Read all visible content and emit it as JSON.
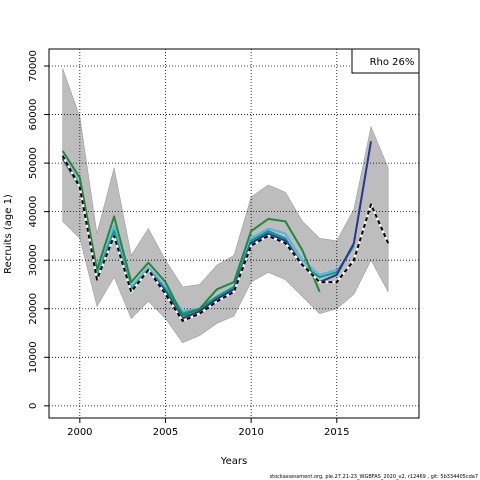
{
  "chart_data": {
    "type": "line",
    "title": "",
    "xlabel": "Years",
    "ylabel": "Recruits (age 1)",
    "xlim": [
      1998.2,
      2019.8
    ],
    "ylim": [
      -2500,
      73500
    ],
    "x_ticks": [
      2000,
      2005,
      2010,
      2015
    ],
    "x_tick_labels": [
      "2000",
      "2005",
      "2010",
      "2015"
    ],
    "y_ticks": [
      0,
      10000,
      20000,
      30000,
      40000,
      50000,
      60000,
      70000
    ],
    "y_tick_labels": [
      "0",
      "10000",
      "20000",
      "30000",
      "40000",
      "50000",
      "60000",
      "70000"
    ],
    "grid": "dotted at tick positions",
    "annotation": "Rho 26%",
    "annotation_position": "top-right",
    "footer": "stockassessment.org, ple.27.21-23_WGBFAS_2020_v2, r12469 , git: 5b334405cda7",
    "band_color": "#bdbdbd",
    "confidence_band": {
      "x": [
        1999,
        2000,
        2001,
        2002,
        2003,
        2004,
        2005,
        2006,
        2007,
        2008,
        2009,
        2010,
        2011,
        2012,
        2013,
        2014,
        2015,
        2016,
        2017,
        2018
      ],
      "upper": [
        69500,
        59500,
        35500,
        49000,
        31000,
        36500,
        30000,
        24500,
        25000,
        29000,
        31000,
        43000,
        45500,
        44000,
        38000,
        34500,
        34000,
        40500,
        57500,
        49000
      ],
      "lower": [
        38000,
        34500,
        20500,
        26500,
        18000,
        21500,
        18000,
        13000,
        14500,
        17000,
        18500,
        25500,
        27500,
        26000,
        22500,
        19000,
        20000,
        23000,
        30000,
        23500
      ]
    },
    "series": [
      {
        "color": "#56b4e9",
        "x": [
          1999,
          2000,
          2001,
          2002,
          2003,
          2004,
          2005,
          2006,
          2007,
          2008,
          2009,
          2010,
          2011,
          2012,
          2013,
          2014,
          2015
        ],
        "values": [
          51000,
          45500,
          27000,
          37000,
          24500,
          28500,
          24500,
          19500,
          20000,
          22500,
          24500,
          34500,
          36500,
          35500,
          30000,
          27000,
          28000
        ]
      },
      {
        "color": "#00a087",
        "x": [
          1999,
          2000,
          2001,
          2002,
          2003,
          2004,
          2005,
          2006,
          2007,
          2008,
          2009,
          2010,
          2011,
          2012,
          2013,
          2014,
          2015,
          2016
        ],
        "values": [
          51500,
          45500,
          26500,
          36000,
          24000,
          28000,
          24000,
          19000,
          20000,
          22500,
          24500,
          34000,
          36000,
          34500,
          29000,
          26500,
          27500,
          33000
        ]
      },
      {
        "color": "#283593",
        "x": [
          1999,
          2000,
          2001,
          2002,
          2003,
          2004,
          2005,
          2006,
          2007,
          2008,
          2009,
          2010,
          2011,
          2012,
          2013,
          2014,
          2015,
          2016,
          2017
        ],
        "values": [
          51000,
          45000,
          26000,
          35000,
          23500,
          28000,
          23500,
          18000,
          19500,
          22000,
          24000,
          33500,
          35500,
          34000,
          29000,
          25500,
          27000,
          33500,
          54500
        ]
      },
      {
        "color": "#1b8a3a",
        "x": [
          1999,
          2000,
          2001,
          2002,
          2003,
          2004,
          2005,
          2006,
          2007,
          2008,
          2009,
          2010,
          2011,
          2012,
          2013,
          2014
        ],
        "values": [
          52500,
          47000,
          28000,
          39000,
          25500,
          29500,
          25500,
          18500,
          20000,
          24000,
          25500,
          36000,
          38500,
          38000,
          32000,
          23500
        ]
      },
      {
        "color": "#000000",
        "dashed": true,
        "x": [
          1999,
          2000,
          2001,
          2002,
          2003,
          2004,
          2005,
          2006,
          2007,
          2008,
          2009,
          2010,
          2011,
          2012,
          2013,
          2014,
          2015,
          2016,
          2017,
          2018
        ],
        "values": [
          51500,
          45000,
          26000,
          35000,
          23500,
          28000,
          23000,
          17500,
          19000,
          21500,
          23500,
          33000,
          35000,
          33500,
          29000,
          25500,
          25500,
          30000,
          41500,
          33500
        ]
      }
    ]
  }
}
